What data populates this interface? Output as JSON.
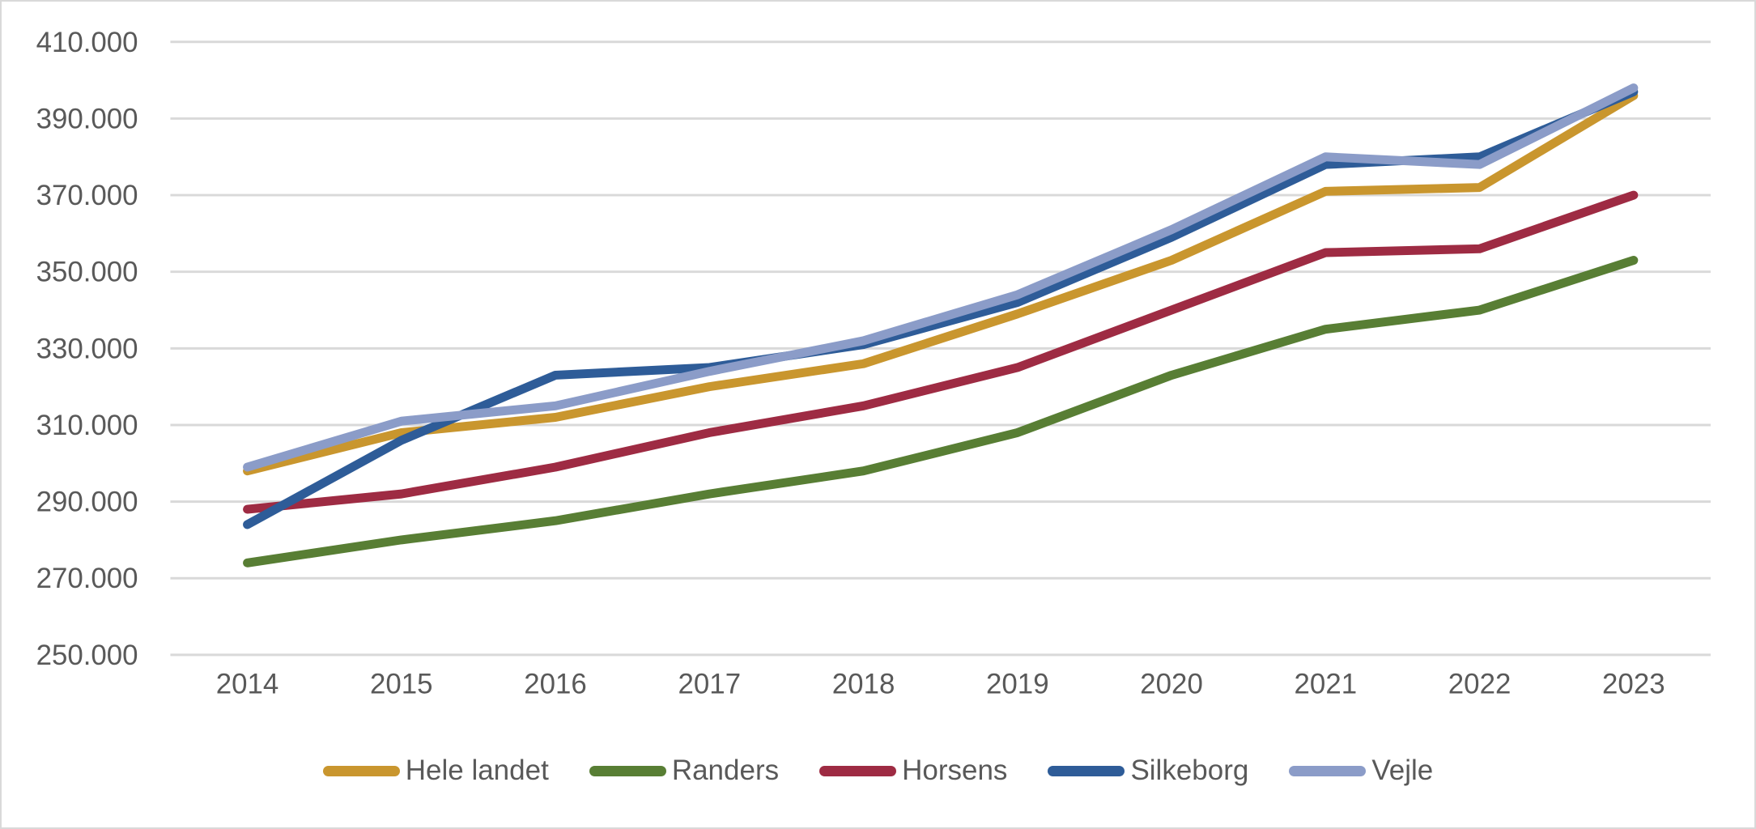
{
  "chart_data": {
    "type": "line",
    "x": [
      2014,
      2015,
      2016,
      2017,
      2018,
      2019,
      2020,
      2021,
      2022,
      2023
    ],
    "x_tick_labels": [
      "2014",
      "2015",
      "2016",
      "2017",
      "2018",
      "2019",
      "2020",
      "2021",
      "2022",
      "2023"
    ],
    "series": [
      {
        "name": "Hele landet",
        "color": "#C9962E",
        "values": [
          298000,
          308000,
          312000,
          320000,
          326000,
          339000,
          353000,
          371000,
          372000,
          396000
        ]
      },
      {
        "name": "Randers",
        "color": "#587E34",
        "values": [
          274000,
          280000,
          285000,
          292000,
          298000,
          308000,
          323000,
          335000,
          340000,
          353000
        ]
      },
      {
        "name": "Horsens",
        "color": "#9E2B43",
        "values": [
          288000,
          292000,
          299000,
          308000,
          315000,
          325000,
          340000,
          355000,
          356000,
          370000
        ]
      },
      {
        "name": "Silkeborg",
        "color": "#2E5C98",
        "values": [
          284000,
          306000,
          323000,
          325000,
          331000,
          342000,
          359000,
          378000,
          380000,
          397000
        ]
      },
      {
        "name": "Vejle",
        "color": "#8B9CC8",
        "values": [
          299000,
          311000,
          315000,
          324000,
          332000,
          344000,
          361000,
          380000,
          378000,
          398000
        ]
      }
    ],
    "ylim": [
      250000,
      410000
    ],
    "ytick_step": 20000,
    "y_tick_labels": [
      "250.000",
      "270.000",
      "290.000",
      "310.000",
      "330.000",
      "350.000",
      "370.000",
      "390.000",
      "410.000"
    ],
    "title": "",
    "xlabel": "",
    "ylabel": "",
    "grid": "horizontal",
    "legend_position": "bottom-center",
    "gridline_color": "#D9D9D9",
    "axis_text_color": "#595959",
    "background_color": "#FFFFFF",
    "border_color": "#D9D9D9"
  }
}
